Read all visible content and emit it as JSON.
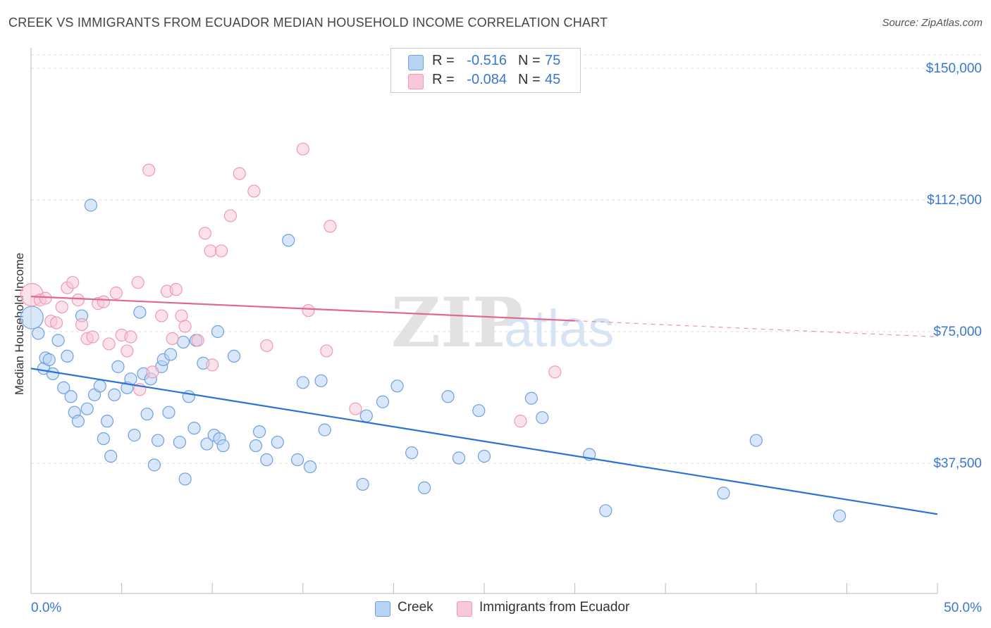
{
  "title": "CREEK VS IMMIGRANTS FROM ECUADOR MEDIAN HOUSEHOLD INCOME CORRELATION CHART",
  "source": "Source: ZipAtlas.com",
  "watermark": {
    "zip": "ZIP",
    "atlas": "atlas"
  },
  "legend_top": {
    "rows": [
      {
        "r_label": "R =",
        "r_value": "-0.516",
        "n_label": "N =",
        "n_value": "75",
        "color": "#a8c8f0"
      },
      {
        "r_label": "R =",
        "r_value": "-0.084",
        "n_label": "N =",
        "n_value": "45",
        "color": "#f5b8cb"
      }
    ]
  },
  "legend_bottom": {
    "items": [
      {
        "label": "Creek",
        "color": "#a8c8f0"
      },
      {
        "label": "Immigrants from Ecuador",
        "color": "#f5b8cb"
      }
    ]
  },
  "chart_data": {
    "type": "scatter",
    "title": "CREEK VS IMMIGRANTS FROM ECUADOR MEDIAN HOUSEHOLD INCOME CORRELATION CHART",
    "xlabel": "",
    "ylabel": "Median Household Income",
    "xlim": [
      0,
      50
    ],
    "ylim": [
      0,
      155000
    ],
    "x_tick_labels": [
      "0.0%",
      "50.0%"
    ],
    "y_ticks": [
      37500,
      75000,
      112500,
      150000
    ],
    "y_tick_labels": [
      "$37,500",
      "$75,000",
      "$112,500",
      "$150,000"
    ],
    "grid": true,
    "legend_position": "top-center",
    "series": [
      {
        "name": "Creek",
        "color": "#6fa0e0",
        "fill": "#b8d4f4",
        "trend_color": "#2a72d4",
        "trend": {
          "x": [
            0,
            50
          ],
          "y": [
            64500,
            23000
          ],
          "dashed_from_x": null
        },
        "points": [
          {
            "x": 0.05,
            "y": 79000,
            "big": true
          },
          {
            "x": 0.4,
            "y": 74500
          },
          {
            "x": 0.7,
            "y": 64500
          },
          {
            "x": 0.8,
            "y": 67500
          },
          {
            "x": 1.0,
            "y": 67000
          },
          {
            "x": 1.2,
            "y": 63000
          },
          {
            "x": 1.5,
            "y": 72500
          },
          {
            "x": 1.8,
            "y": 59000
          },
          {
            "x": 2.0,
            "y": 68000
          },
          {
            "x": 2.2,
            "y": 56500
          },
          {
            "x": 2.4,
            "y": 52000
          },
          {
            "x": 2.6,
            "y": 49500
          },
          {
            "x": 2.8,
            "y": 79500
          },
          {
            "x": 3.1,
            "y": 53000
          },
          {
            "x": 3.3,
            "y": 111000
          },
          {
            "x": 3.5,
            "y": 57000
          },
          {
            "x": 3.8,
            "y": 59500
          },
          {
            "x": 4.0,
            "y": 44500
          },
          {
            "x": 4.2,
            "y": 49500
          },
          {
            "x": 4.4,
            "y": 39500
          },
          {
            "x": 4.6,
            "y": 57000
          },
          {
            "x": 4.8,
            "y": 65000
          },
          {
            "x": 5.3,
            "y": 59000
          },
          {
            "x": 5.5,
            "y": 61500
          },
          {
            "x": 5.7,
            "y": 45500
          },
          {
            "x": 6.0,
            "y": 80500
          },
          {
            "x": 6.2,
            "y": 63000
          },
          {
            "x": 6.4,
            "y": 51500
          },
          {
            "x": 6.6,
            "y": 61500
          },
          {
            "x": 6.8,
            "y": 37000
          },
          {
            "x": 7.0,
            "y": 44000
          },
          {
            "x": 7.2,
            "y": 65000
          },
          {
            "x": 7.3,
            "y": 67000
          },
          {
            "x": 7.6,
            "y": 52000
          },
          {
            "x": 7.7,
            "y": 68500
          },
          {
            "x": 8.2,
            "y": 43500
          },
          {
            "x": 8.4,
            "y": 72000
          },
          {
            "x": 8.5,
            "y": 33000
          },
          {
            "x": 8.7,
            "y": 56500
          },
          {
            "x": 9.0,
            "y": 47500
          },
          {
            "x": 9.1,
            "y": 72500
          },
          {
            "x": 9.5,
            "y": 66000
          },
          {
            "x": 9.7,
            "y": 43000
          },
          {
            "x": 10.1,
            "y": 45500
          },
          {
            "x": 10.4,
            "y": 44500
          },
          {
            "x": 10.6,
            "y": 42500
          },
          {
            "x": 10.3,
            "y": 75000
          },
          {
            "x": 11.2,
            "y": 68000
          },
          {
            "x": 12.4,
            "y": 42500
          },
          {
            "x": 12.6,
            "y": 46500
          },
          {
            "x": 13.0,
            "y": 38500
          },
          {
            "x": 13.6,
            "y": 43500
          },
          {
            "x": 14.2,
            "y": 101000
          },
          {
            "x": 14.7,
            "y": 38500
          },
          {
            "x": 15.0,
            "y": 60500
          },
          {
            "x": 15.4,
            "y": 36500
          },
          {
            "x": 16.0,
            "y": 61000
          },
          {
            "x": 16.2,
            "y": 47000
          },
          {
            "x": 18.3,
            "y": 31500
          },
          {
            "x": 18.5,
            "y": 51000
          },
          {
            "x": 19.4,
            "y": 55000
          },
          {
            "x": 20.2,
            "y": 59500
          },
          {
            "x": 21.0,
            "y": 40500
          },
          {
            "x": 21.7,
            "y": 30500
          },
          {
            "x": 23.0,
            "y": 56500
          },
          {
            "x": 23.6,
            "y": 39000
          },
          {
            "x": 24.7,
            "y": 52500
          },
          {
            "x": 25.0,
            "y": 39500
          },
          {
            "x": 27.6,
            "y": 56000
          },
          {
            "x": 28.2,
            "y": 50500
          },
          {
            "x": 30.8,
            "y": 40000
          },
          {
            "x": 31.7,
            "y": 24000
          },
          {
            "x": 38.2,
            "y": 29000
          },
          {
            "x": 40.0,
            "y": 44000
          },
          {
            "x": 44.6,
            "y": 22500
          }
        ]
      },
      {
        "name": "Immigrants from Ecuador",
        "color": "#f09ab5",
        "fill": "#f8c8d8",
        "trend_color": "#e06890",
        "trend": {
          "x": [
            0,
            50
          ],
          "y": [
            85000,
            73500
          ],
          "dashed_from_x": 30
        },
        "points": [
          {
            "x": 0.05,
            "y": 85500,
            "big": true
          },
          {
            "x": 0.5,
            "y": 84000
          },
          {
            "x": 0.8,
            "y": 84500
          },
          {
            "x": 1.1,
            "y": 78000
          },
          {
            "x": 1.4,
            "y": 77500
          },
          {
            "x": 1.7,
            "y": 82000
          },
          {
            "x": 2.0,
            "y": 87500
          },
          {
            "x": 2.3,
            "y": 89000
          },
          {
            "x": 2.6,
            "y": 84000
          },
          {
            "x": 2.8,
            "y": 77000
          },
          {
            "x": 3.1,
            "y": 73000
          },
          {
            "x": 3.4,
            "y": 73500
          },
          {
            "x": 3.7,
            "y": 83000
          },
          {
            "x": 4.0,
            "y": 83500
          },
          {
            "x": 4.3,
            "y": 71500
          },
          {
            "x": 4.7,
            "y": 86000
          },
          {
            "x": 5.0,
            "y": 74000
          },
          {
            "x": 5.3,
            "y": 69500
          },
          {
            "x": 5.5,
            "y": 73500
          },
          {
            "x": 5.9,
            "y": 89000
          },
          {
            "x": 6.0,
            "y": 58500
          },
          {
            "x": 6.5,
            "y": 121000
          },
          {
            "x": 6.7,
            "y": 63500
          },
          {
            "x": 7.2,
            "y": 79500
          },
          {
            "x": 7.5,
            "y": 86500
          },
          {
            "x": 7.8,
            "y": 73000
          },
          {
            "x": 8.0,
            "y": 87000
          },
          {
            "x": 8.3,
            "y": 79500
          },
          {
            "x": 8.5,
            "y": 76500
          },
          {
            "x": 9.2,
            "y": 72500
          },
          {
            "x": 9.6,
            "y": 103000
          },
          {
            "x": 9.9,
            "y": 98000
          },
          {
            "x": 10.0,
            "y": 65500
          },
          {
            "x": 10.5,
            "y": 98000
          },
          {
            "x": 11.0,
            "y": 108000
          },
          {
            "x": 11.5,
            "y": 120000
          },
          {
            "x": 12.3,
            "y": 115000
          },
          {
            "x": 13.0,
            "y": 71000
          },
          {
            "x": 15.0,
            "y": 127000
          },
          {
            "x": 15.3,
            "y": 81000
          },
          {
            "x": 16.3,
            "y": 69500
          },
          {
            "x": 16.5,
            "y": 105000
          },
          {
            "x": 17.9,
            "y": 53000
          },
          {
            "x": 27.0,
            "y": 49500
          },
          {
            "x": 28.9,
            "y": 63500
          }
        ]
      }
    ]
  }
}
